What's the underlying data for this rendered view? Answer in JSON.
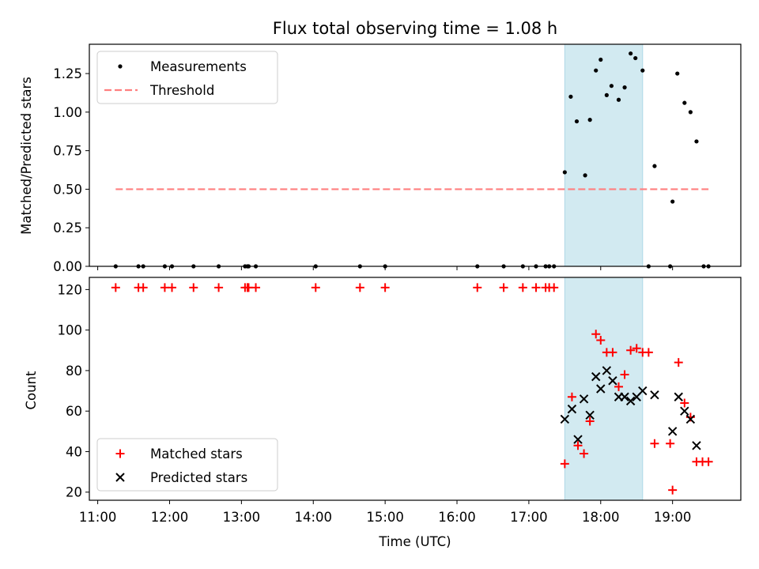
{
  "title": "Flux total observing time = 1.08 h",
  "xlabel": "Time (UTC)",
  "x_ticks": [
    "11:00",
    "12:00",
    "13:00",
    "14:00",
    "15:00",
    "16:00",
    "17:00",
    "18:00",
    "19:00"
  ],
  "x_tick_hours": [
    11,
    12,
    13,
    14,
    15,
    16,
    17,
    18,
    19
  ],
  "colors": {
    "highlight": "#add8e6",
    "threshold": "#ff7f7f",
    "matched": "#ff0000",
    "predicted": "#000000",
    "measurement": "#000000"
  },
  "chart_data": [
    {
      "type": "scatter",
      "panel": "top",
      "title": "Flux total observing time = 1.08 h",
      "xlabel": "",
      "ylabel": "Matched/Predicted stars",
      "xlim": [
        "10:53",
        "19:57"
      ],
      "ylim": [
        0,
        1.44
      ],
      "y_ticks": [
        "0.00",
        "0.25",
        "0.50",
        "0.75",
        "1.00",
        "1.25"
      ],
      "y_tick_values": [
        0,
        0.25,
        0.5,
        0.75,
        1.0,
        1.25
      ],
      "legend_position": "upper left",
      "highlight_span": [
        "17:30",
        "18:35"
      ],
      "threshold": {
        "name": "Threshold",
        "y": 0.5,
        "x_range": [
          "11:15",
          "19:30"
        ]
      },
      "series": [
        {
          "name": "Measurements",
          "x": [
            "11:15",
            "11:34",
            "11:38",
            "11:56",
            "12:02",
            "12:20",
            "12:41",
            "13:03",
            "13:05",
            "13:06",
            "13:12",
            "14:02",
            "14:39",
            "15:00",
            "16:17",
            "16:39",
            "16:55",
            "17:06",
            "17:14",
            "17:17",
            "17:21",
            "17:30",
            "17:35",
            "17:40",
            "17:47",
            "17:51",
            "17:56",
            "18:00",
            "18:05",
            "18:09",
            "18:15",
            "18:20",
            "18:25",
            "18:29",
            "18:35",
            "18:40",
            "18:45",
            "18:58",
            "19:00",
            "19:04",
            "19:10",
            "19:15",
            "19:20",
            "19:26",
            "19:30"
          ],
          "y": [
            0,
            0,
            0,
            0,
            0,
            0,
            0,
            0,
            0,
            0,
            0,
            0,
            0,
            0,
            0,
            0,
            0,
            0,
            0,
            0,
            0,
            0.61,
            1.1,
            0.94,
            0.59,
            0.95,
            1.27,
            1.34,
            1.11,
            1.17,
            1.08,
            1.16,
            1.38,
            1.35,
            1.27,
            0,
            0.65,
            0,
            0.42,
            1.25,
            1.06,
            1.0,
            0.81,
            0,
            0
          ]
        }
      ]
    },
    {
      "type": "scatter",
      "panel": "bottom",
      "title": "",
      "xlabel": "Time (UTC)",
      "ylabel": "Count",
      "xlim": [
        "10:53",
        "19:57"
      ],
      "ylim": [
        16,
        126
      ],
      "y_ticks": [
        "20",
        "40",
        "60",
        "80",
        "100",
        "120"
      ],
      "y_tick_values": [
        20,
        40,
        60,
        80,
        100,
        120
      ],
      "legend_position": "lower left",
      "highlight_span": [
        "17:30",
        "18:35"
      ],
      "series": [
        {
          "name": "Matched stars",
          "x": [
            "11:15",
            "11:34",
            "11:38",
            "11:56",
            "12:02",
            "12:20",
            "12:41",
            "13:03",
            "13:05",
            "13:06",
            "13:12",
            "14:02",
            "14:39",
            "15:00",
            "16:17",
            "16:39",
            "16:55",
            "17:06",
            "17:14",
            "17:17",
            "17:21",
            "17:30",
            "17:36",
            "17:41",
            "17:46",
            "17:51",
            "17:56",
            "18:00",
            "18:05",
            "18:10",
            "18:15",
            "18:20",
            "18:25",
            "18:30",
            "18:35",
            "18:40",
            "18:45",
            "18:58",
            "19:00",
            "19:05",
            "19:10",
            "19:15",
            "19:20",
            "19:25",
            "19:30"
          ],
          "y": [
            121,
            121,
            121,
            121,
            121,
            121,
            121,
            121,
            121,
            121,
            121,
            121,
            121,
            121,
            121,
            121,
            121,
            121,
            121,
            121,
            121,
            34,
            67,
            43,
            39,
            55,
            98,
            95,
            89,
            89,
            72,
            78,
            90,
            91,
            89,
            89,
            44,
            44,
            21,
            84,
            64,
            57,
            35,
            35,
            35
          ]
        },
        {
          "name": "Predicted stars",
          "x": [
            "17:30",
            "17:36",
            "17:41",
            "17:46",
            "17:51",
            "17:56",
            "18:00",
            "18:05",
            "18:10",
            "18:15",
            "18:20",
            "18:25",
            "18:30",
            "18:35",
            "18:45",
            "19:00",
            "19:05",
            "19:10",
            "19:15",
            "19:20"
          ],
          "y": [
            56,
            61,
            46,
            66,
            58,
            77,
            71,
            80,
            75,
            67,
            67,
            65,
            67,
            70,
            68,
            50,
            67,
            60,
            56,
            43
          ]
        }
      ]
    }
  ]
}
